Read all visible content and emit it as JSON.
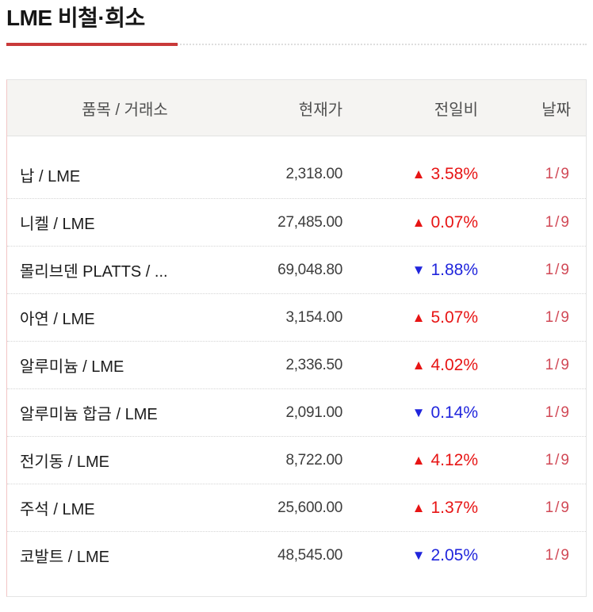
{
  "title": "LME 비철·희소",
  "icons": {
    "up_arrow": "▲",
    "down_arrow": "▼"
  },
  "colors": {
    "up": "#e71414",
    "down": "#2025dc",
    "date": "#d14956",
    "accent_underline": "#c93a3a"
  },
  "table": {
    "headers": {
      "item": "품목 / 거래소",
      "price": "현재가",
      "change": "전일비",
      "date": "날짜"
    },
    "rows": [
      {
        "item": "납 / LME",
        "price": "2,318.00",
        "direction": "up",
        "change": "3.58%",
        "date": "1/9"
      },
      {
        "item": "니켈 / LME",
        "price": "27,485.00",
        "direction": "up",
        "change": "0.07%",
        "date": "1/9"
      },
      {
        "item": "몰리브덴 PLATTS / ...",
        "price": "69,048.80",
        "direction": "down",
        "change": "1.88%",
        "date": "1/9"
      },
      {
        "item": "아연 / LME",
        "price": "3,154.00",
        "direction": "up",
        "change": "5.07%",
        "date": "1/9"
      },
      {
        "item": "알루미늄 / LME",
        "price": "2,336.50",
        "direction": "up",
        "change": "4.02%",
        "date": "1/9"
      },
      {
        "item": "알루미늄 합금 / LME",
        "price": "2,091.00",
        "direction": "down",
        "change": "0.14%",
        "date": "1/9"
      },
      {
        "item": "전기동 / LME",
        "price": "8,722.00",
        "direction": "up",
        "change": "4.12%",
        "date": "1/9"
      },
      {
        "item": "주석 / LME",
        "price": "25,600.00",
        "direction": "up",
        "change": "1.37%",
        "date": "1/9"
      },
      {
        "item": "코발트 / LME",
        "price": "48,545.00",
        "direction": "down",
        "change": "2.05%",
        "date": "1/9"
      }
    ]
  }
}
